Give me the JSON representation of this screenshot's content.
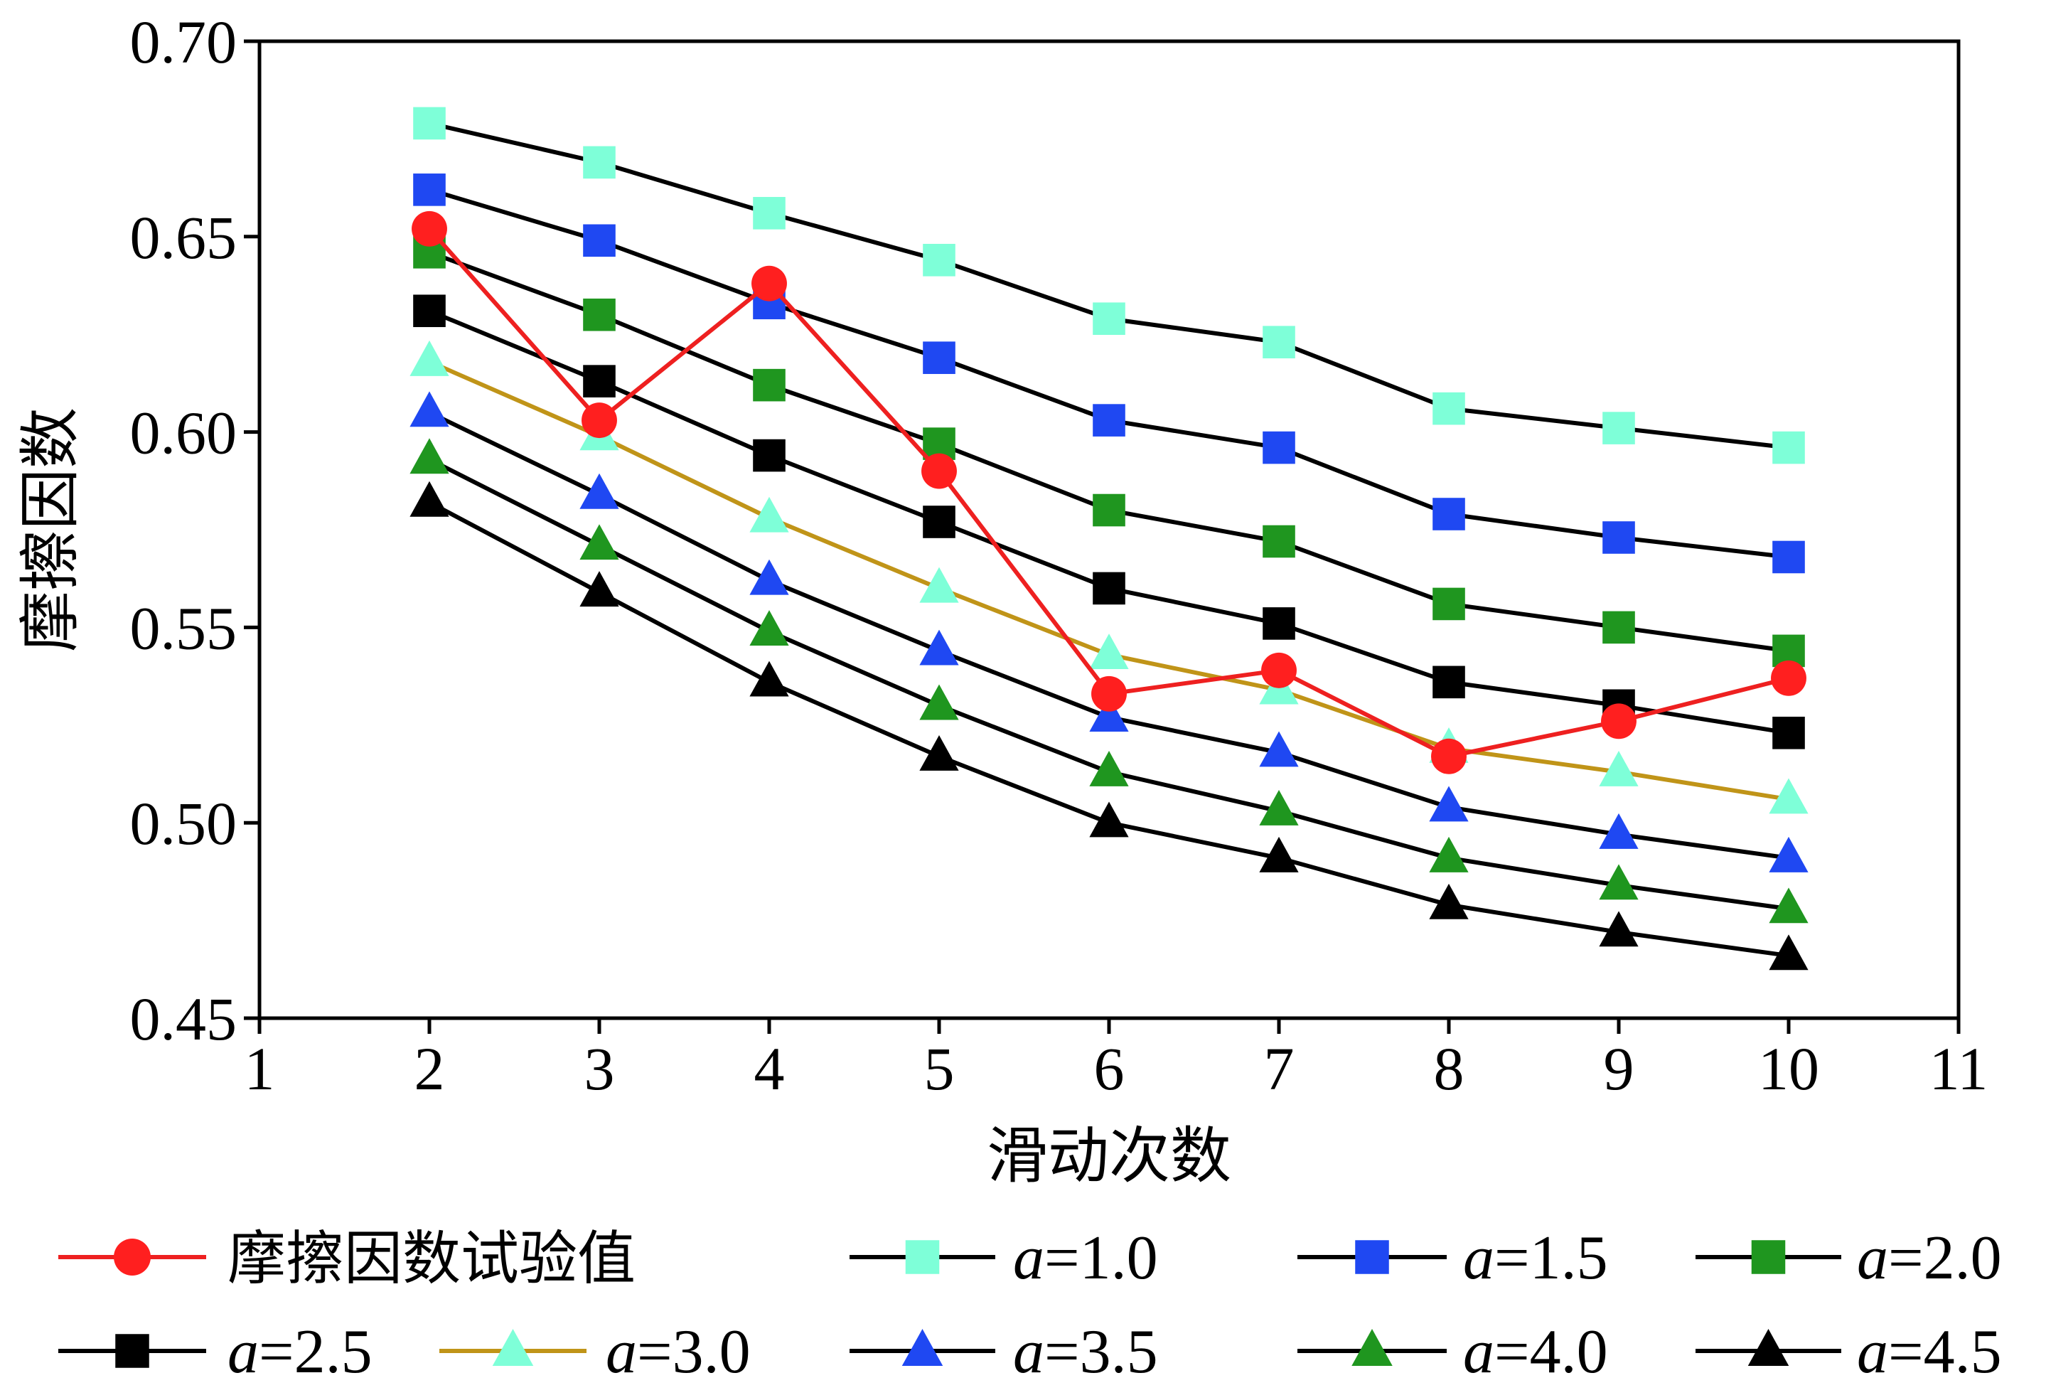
{
  "chart_data": {
    "type": "line",
    "xlabel": "滑动次数",
    "ylabel": "摩擦因数",
    "xlim": [
      1,
      11
    ],
    "ylim": [
      0.45,
      0.7
    ],
    "x_ticks": [
      "1",
      "2",
      "3",
      "4",
      "5",
      "6",
      "7",
      "8",
      "9",
      "10",
      "11"
    ],
    "y_ticks": [
      "0.45",
      "0.50",
      "0.55",
      "0.60",
      "0.65",
      "0.70"
    ],
    "x": [
      2,
      3,
      4,
      5,
      6,
      7,
      8,
      9,
      10
    ],
    "grid": false,
    "legend_position": "bottom",
    "series": [
      {
        "name": "摩擦因数试验值",
        "name_prefix": "",
        "name_value": "",
        "marker": "circle",
        "color": "#ff1f1f",
        "line_color": "#ee2020",
        "values": [
          0.652,
          0.603,
          0.638,
          0.59,
          0.533,
          0.539,
          0.517,
          0.526,
          0.537
        ]
      },
      {
        "name": "a=1.0",
        "name_prefix": "a",
        "name_value": "=1.0",
        "marker": "square",
        "color": "#7effd8",
        "line_color": "#000000",
        "values": [
          0.679,
          0.669,
          0.656,
          0.644,
          0.629,
          0.623,
          0.606,
          0.601,
          0.596
        ]
      },
      {
        "name": "a=1.5",
        "name_prefix": "a",
        "name_value": "=1.5",
        "marker": "square",
        "color": "#1f48f2",
        "line_color": "#000000",
        "values": [
          0.662,
          0.649,
          0.633,
          0.619,
          0.603,
          0.596,
          0.579,
          0.573,
          0.568
        ]
      },
      {
        "name": "a=2.0",
        "name_prefix": "a",
        "name_value": "=2.0",
        "marker": "square",
        "color": "#1f961f",
        "line_color": "#000000",
        "values": [
          0.646,
          0.63,
          0.612,
          0.597,
          0.58,
          0.572,
          0.556,
          0.55,
          0.544
        ]
      },
      {
        "name": "a=2.5",
        "name_prefix": "a",
        "name_value": "=2.5",
        "marker": "square",
        "color": "#000000",
        "line_color": "#000000",
        "values": [
          0.631,
          0.613,
          0.594,
          0.577,
          0.56,
          0.551,
          0.536,
          0.53,
          0.523
        ]
      },
      {
        "name": "a=3.0",
        "name_prefix": "a",
        "name_value": "=3.0",
        "marker": "triangle",
        "color": "#7effd8",
        "line_color": "#c09418",
        "values": [
          0.618,
          0.599,
          0.578,
          0.56,
          0.543,
          0.534,
          0.519,
          0.513,
          0.506
        ]
      },
      {
        "name": "a=3.5",
        "name_prefix": "a",
        "name_value": "=3.5",
        "marker": "triangle",
        "color": "#1f48f2",
        "line_color": "#000000",
        "values": [
          0.605,
          0.584,
          0.562,
          0.544,
          0.527,
          0.518,
          0.504,
          0.497,
          0.491
        ]
      },
      {
        "name": "a=4.0",
        "name_prefix": "a",
        "name_value": "=4.0",
        "marker": "triangle",
        "color": "#1f961f",
        "line_color": "#000000",
        "values": [
          0.593,
          0.571,
          0.549,
          0.53,
          0.513,
          0.503,
          0.491,
          0.484,
          0.478
        ]
      },
      {
        "name": "a=4.5",
        "name_prefix": "a",
        "name_value": "=4.5",
        "marker": "triangle",
        "color": "#000000",
        "line_color": "#000000",
        "values": [
          0.582,
          0.559,
          0.536,
          0.517,
          0.5,
          0.491,
          0.479,
          0.472,
          0.466
        ]
      }
    ]
  }
}
